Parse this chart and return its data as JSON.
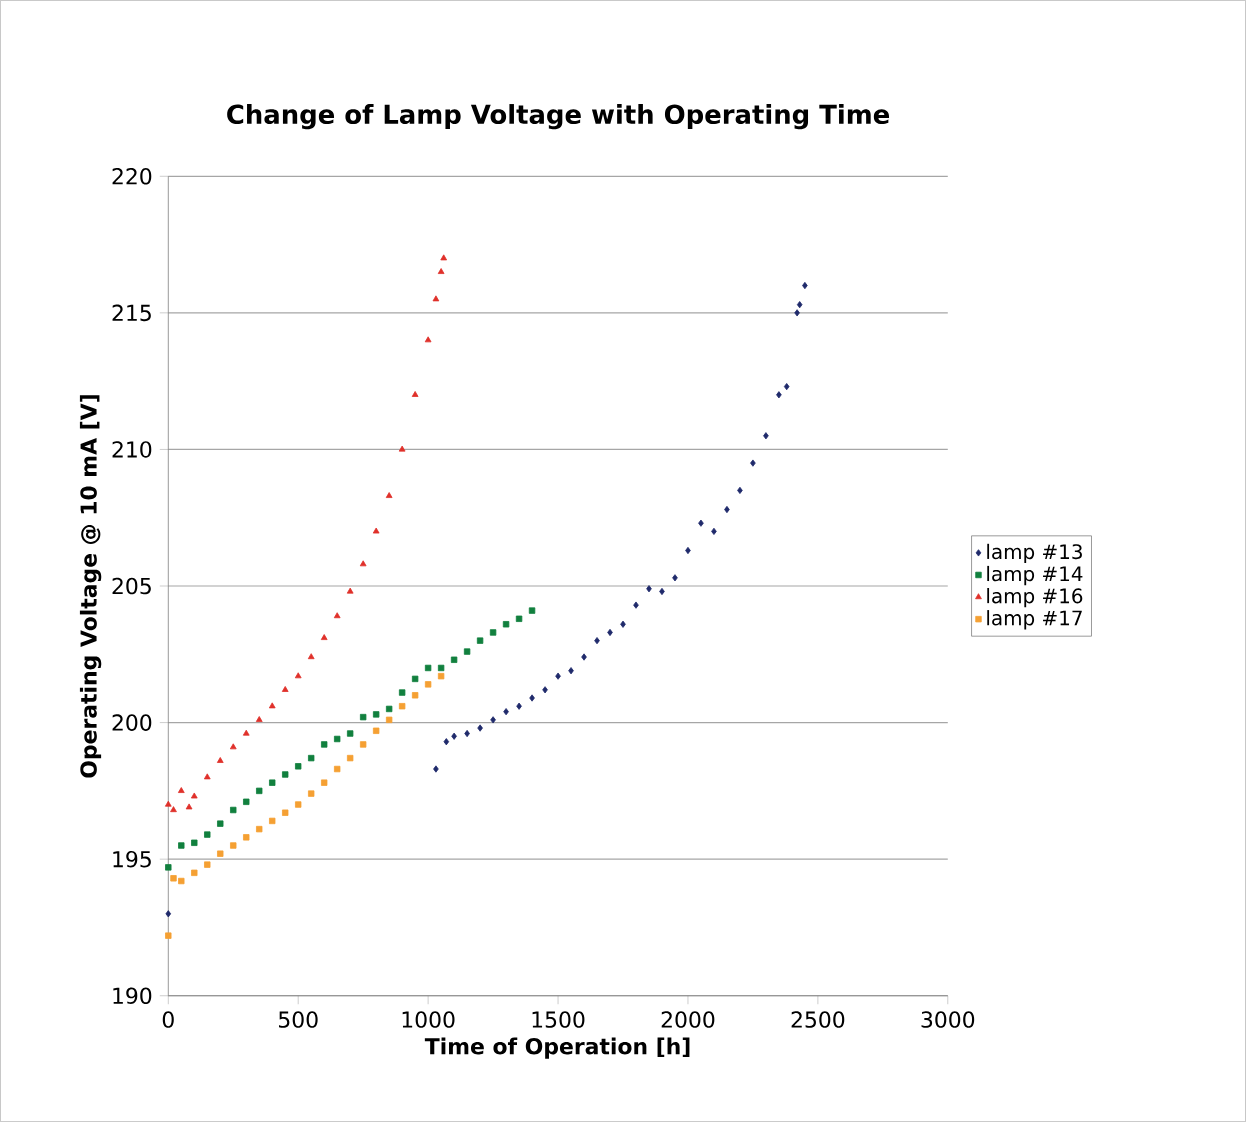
{
  "chart_data": {
    "type": "scatter",
    "title": "Change of Lamp Voltage with Operating Time",
    "xlabel": "Time of Operation [h]",
    "ylabel": "Operating Voltage @ 10 mA [V]",
    "xlim": [
      0,
      3000
    ],
    "xticks": [
      0,
      500,
      1000,
      1500,
      2000,
      2500,
      3000
    ],
    "ylim": [
      190,
      220
    ],
    "yticks": [
      190,
      195,
      200,
      205,
      210,
      215,
      220
    ],
    "grid": "y",
    "legend": "right",
    "series": [
      {
        "name": "lamp #13",
        "color": "#1f2a6b",
        "marker": "diamond",
        "x": [
          0,
          1030,
          1070,
          1100,
          1150,
          1200,
          1250,
          1300,
          1350,
          1400,
          1450,
          1500,
          1550,
          1600,
          1650,
          1700,
          1750,
          1800,
          1850,
          1900,
          1950,
          2000,
          2050,
          2100,
          2150,
          2200,
          2250,
          2300,
          2350,
          2380,
          2420,
          2430,
          2450
        ],
        "values": [
          193,
          198.3,
          199.3,
          199.5,
          199.6,
          199.8,
          200.1,
          200.4,
          200.6,
          200.9,
          201.2,
          201.7,
          201.9,
          202.4,
          203,
          203.3,
          203.6,
          204.3,
          204.9,
          204.8,
          205.3,
          206.3,
          207.3,
          207,
          207.8,
          208.5,
          209.5,
          210.5,
          212,
          212.3,
          215,
          215.3,
          216
        ]
      },
      {
        "name": "lamp #14",
        "color": "#11803e",
        "marker": "square",
        "x": [
          0,
          50,
          100,
          150,
          200,
          250,
          300,
          350,
          400,
          450,
          500,
          550,
          600,
          650,
          700,
          750,
          800,
          850,
          900,
          950,
          1000,
          1050,
          1100,
          1150,
          1200,
          1250,
          1300,
          1350,
          1400
        ],
        "values": [
          194.7,
          195.5,
          195.6,
          195.9,
          196.3,
          196.8,
          197.1,
          197.5,
          197.8,
          198.1,
          198.4,
          198.7,
          199.2,
          199.4,
          199.6,
          200.2,
          200.3,
          200.5,
          201.1,
          201.6,
          202,
          202,
          202.3,
          202.6,
          203,
          203.3,
          203.6,
          203.8,
          204.1
        ]
      },
      {
        "name": "lamp #16",
        "color": "#e0302a",
        "marker": "triangle",
        "x": [
          0,
          20,
          50,
          80,
          100,
          150,
          200,
          250,
          300,
          350,
          400,
          450,
          500,
          550,
          600,
          650,
          700,
          750,
          800,
          850,
          900,
          950,
          1000,
          1030,
          1050,
          1060
        ],
        "values": [
          197,
          196.8,
          197.5,
          196.9,
          197.3,
          198,
          198.6,
          199.1,
          199.6,
          200.1,
          200.6,
          201.2,
          201.7,
          202.4,
          203.1,
          203.9,
          204.8,
          205.8,
          207,
          208.3,
          210,
          212,
          214,
          215.5,
          216.5,
          217
        ]
      },
      {
        "name": "lamp #17",
        "color": "#f5a033",
        "marker": "square",
        "x": [
          0,
          20,
          50,
          100,
          150,
          200,
          250,
          300,
          350,
          400,
          450,
          500,
          550,
          600,
          650,
          700,
          750,
          800,
          850,
          900,
          950,
          1000,
          1050
        ],
        "values": [
          192.2,
          194.3,
          194.2,
          194.5,
          194.8,
          195.2,
          195.5,
          195.8,
          196.1,
          196.4,
          196.7,
          197,
          197.4,
          197.8,
          198.3,
          198.7,
          199.2,
          199.7,
          200.1,
          200.6,
          201,
          201.4,
          201.7
        ]
      }
    ]
  }
}
